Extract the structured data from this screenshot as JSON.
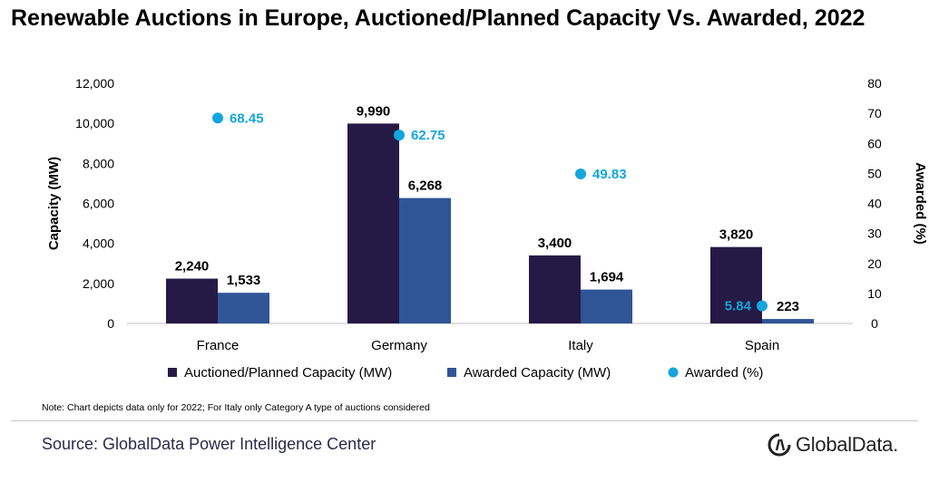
{
  "title": "Renewable Auctions in Europe, Auctioned/Planned Capacity Vs. Awarded, 2022",
  "note": "Note: Chart depicts data only for 2022; For Italy only Category A type of auctions considered",
  "source": "Source: GlobalData Power Intelligence Center",
  "logo": {
    "text": "GlobalData.",
    "icon": "globaldata-logo-icon"
  },
  "colors": {
    "auctioned": "#241a45",
    "awarded": "#2f5597",
    "awarded_pct": "#12a6dc"
  },
  "chart_data": {
    "type": "bar",
    "categories": [
      "France",
      "Germany",
      "Italy",
      "Spain"
    ],
    "series": [
      {
        "name": "Auctioned/Planned Capacity (MW)",
        "kind": "bar",
        "axis": "left",
        "values": [
          2240,
          9990,
          3400,
          3820
        ],
        "labels": [
          "2,240",
          "9,990",
          "3,400",
          "3,820"
        ]
      },
      {
        "name": "Awarded Capacity (MW)",
        "kind": "bar",
        "axis": "left",
        "values": [
          1533,
          6268,
          1694,
          223
        ],
        "labels": [
          "1,533",
          "6,268",
          "1,694",
          "223"
        ]
      },
      {
        "name": "Awarded (%)",
        "kind": "scatter",
        "axis": "right",
        "values": [
          68.45,
          62.75,
          49.83,
          5.84
        ],
        "labels": [
          "68.45",
          "62.75",
          "49.83",
          "5.84"
        ]
      }
    ],
    "ylabel": "Capacity (MW)",
    "y2label": "Awarded (%)",
    "ylim": [
      0,
      12000
    ],
    "y2lim": [
      0,
      80
    ],
    "yticks": [
      "0",
      "2,000",
      "4,000",
      "6,000",
      "8,000",
      "10,000",
      "12,000"
    ],
    "y2ticks": [
      "0",
      "10",
      "20",
      "30",
      "40",
      "50",
      "60",
      "70",
      "80"
    ],
    "grid": false,
    "legend_position": "bottom"
  }
}
